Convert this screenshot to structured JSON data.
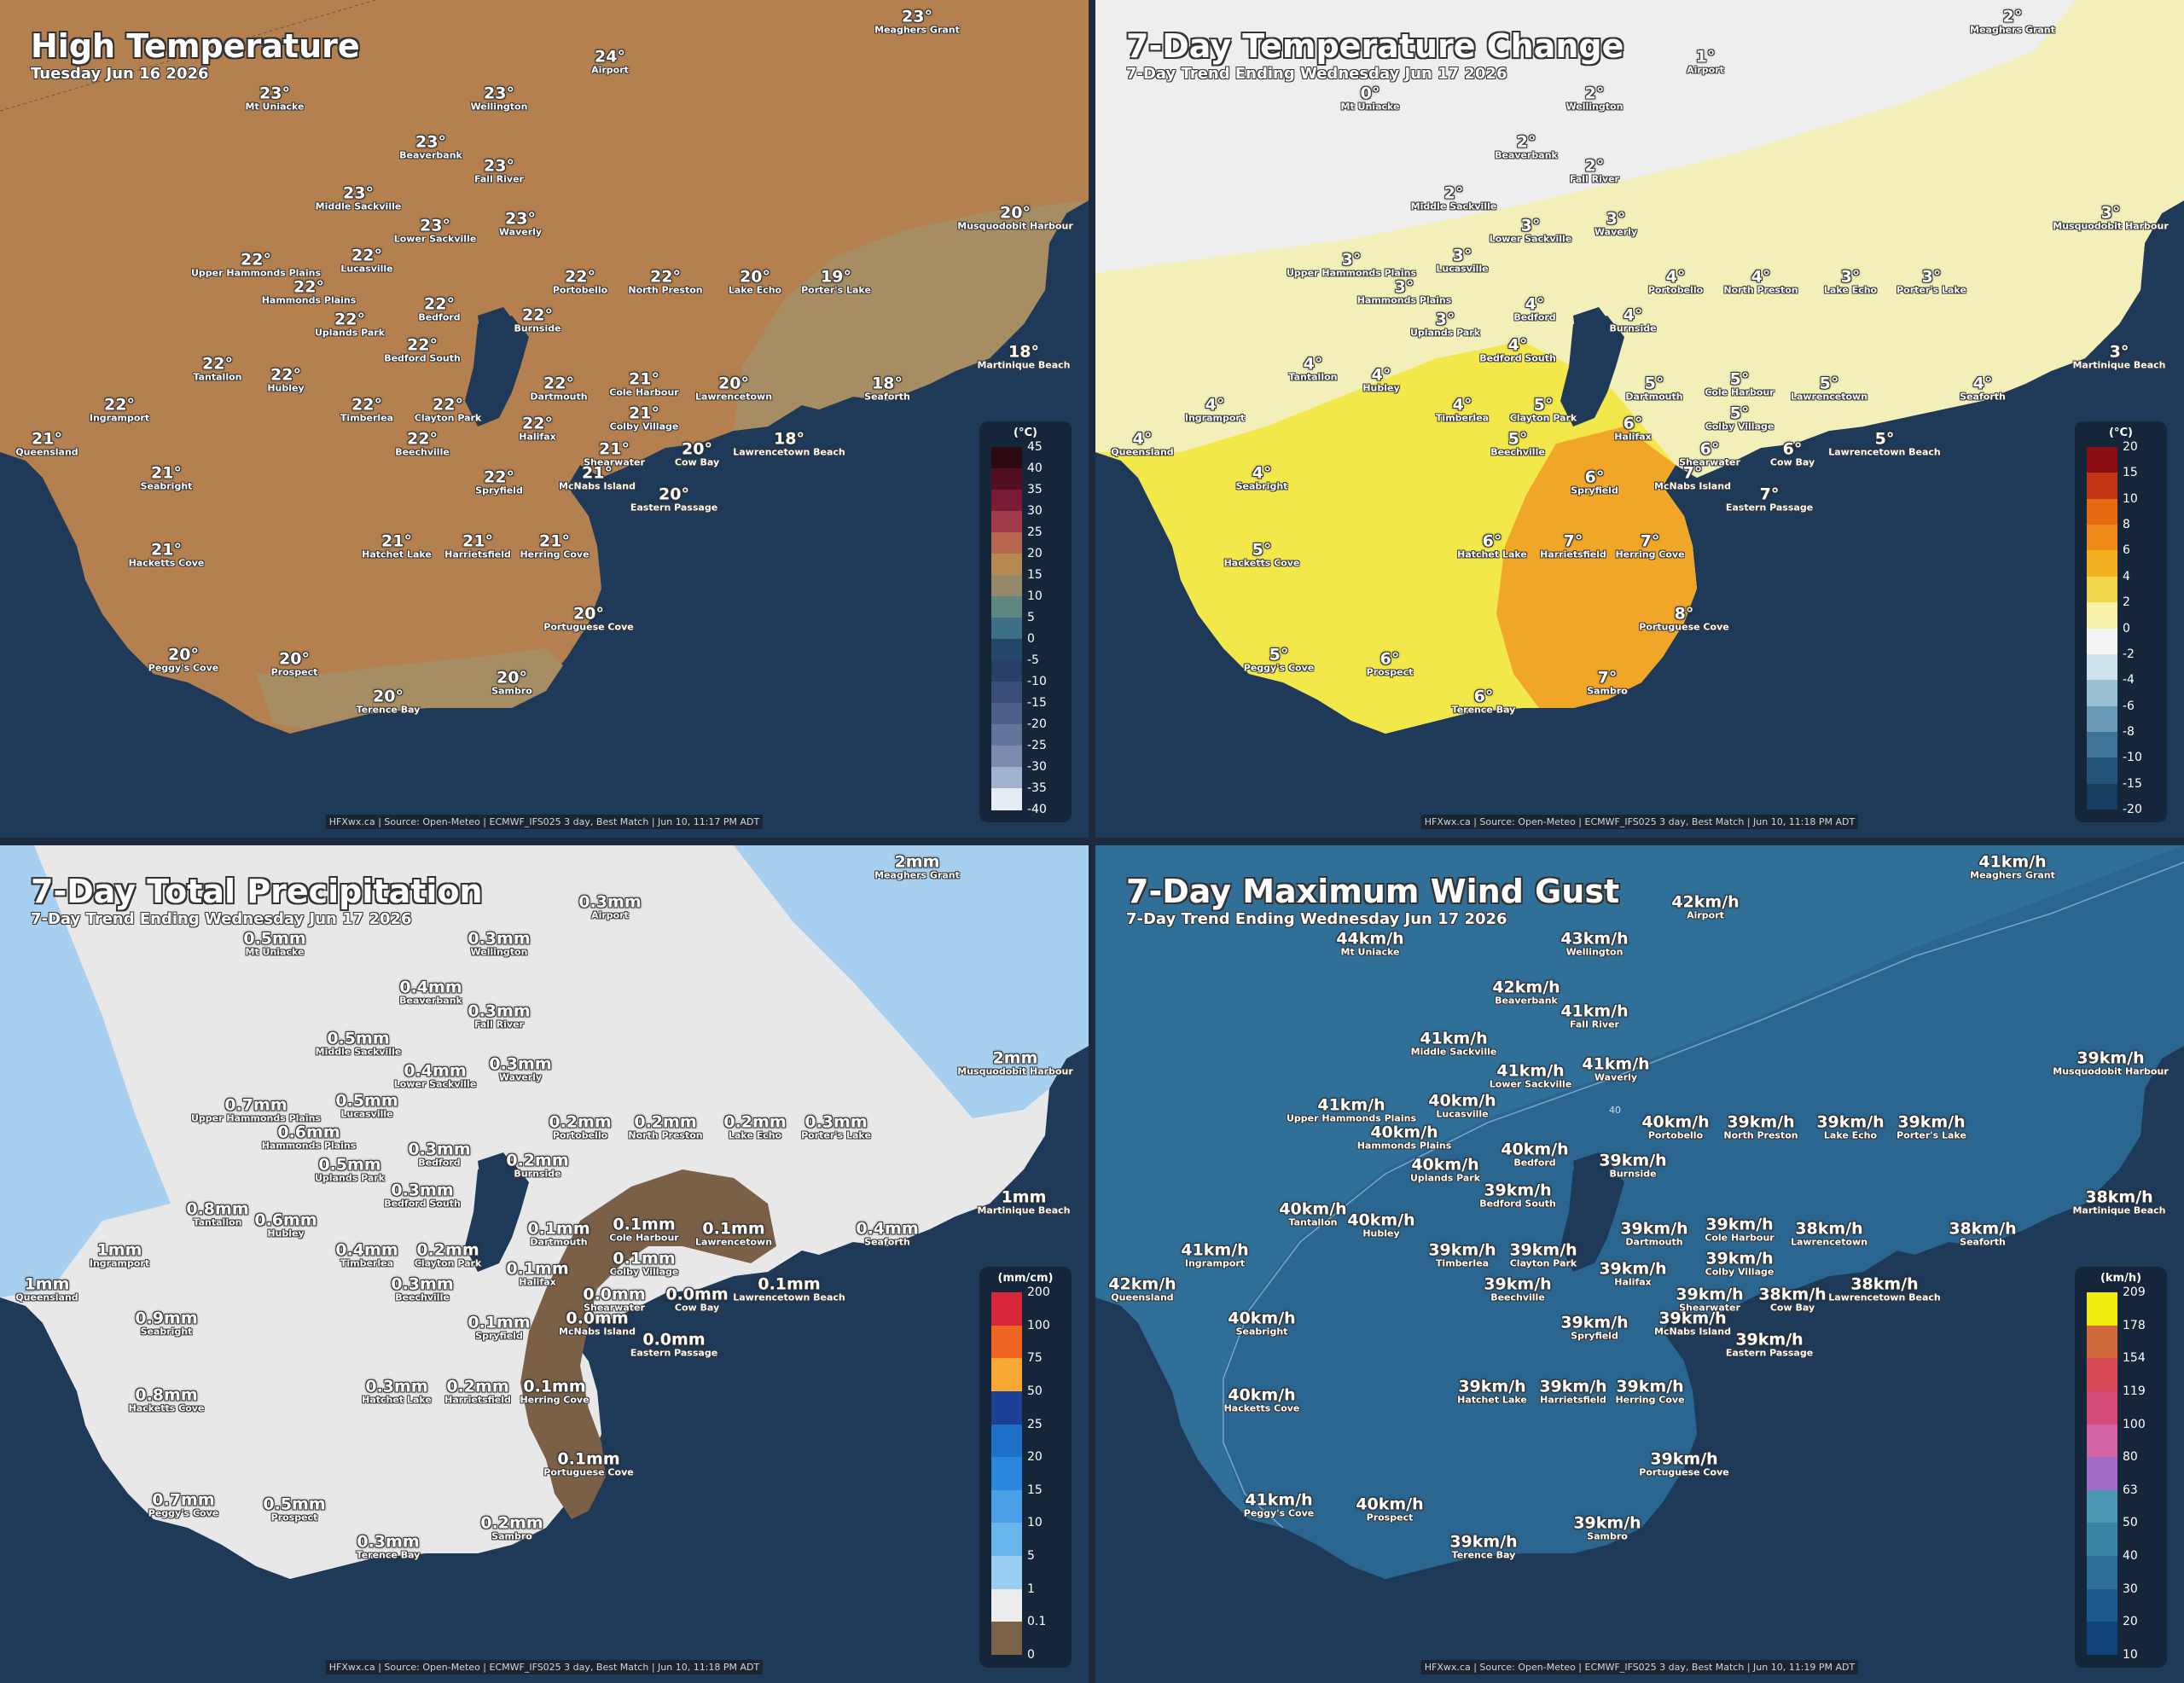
{
  "panels": [
    {
      "id": "temp",
      "title": "High Temperature",
      "subtitle": "Tuesday Jun 16 2026",
      "legend": {
        "unit": "(°C)",
        "ticks": [
          "45",
          "40",
          "35",
          "30",
          "25",
          "20",
          "15",
          "10",
          "5",
          "0",
          "-5",
          "-10",
          "-15",
          "-20",
          "-25",
          "-30",
          "-35",
          "-40"
        ],
        "colors": [
          "#2b0a12",
          "#520f22",
          "#7a1a35",
          "#a03a48",
          "#b8664f",
          "#b5894f",
          "#93886a",
          "#5d8681",
          "#3d6f86",
          "#24486a",
          "#2a3f66",
          "#3a4d76",
          "#4e5f87",
          "#64739a",
          "#7b8aae",
          "#a1b2cf",
          "#e6ecf4"
        ]
      },
      "credit": "HFXwx.ca | Source: Open-Meteo | ECMWF_IFS025 3 day, Best Match | Jun 10, 11:17 PM ADT",
      "places": [
        {
          "name": "Meaghers Grant",
          "value": "23°"
        },
        {
          "name": "Airport",
          "value": "24°"
        },
        {
          "name": "Mt Uniacke",
          "value": "23°"
        },
        {
          "name": "Wellington",
          "value": "23°"
        },
        {
          "name": "Beaverbank",
          "value": "23°"
        },
        {
          "name": "Fall River",
          "value": "23°"
        },
        {
          "name": "Middle Sackville",
          "value": "23°"
        },
        {
          "name": "Lower Sackville",
          "value": "23°"
        },
        {
          "name": "Waverly",
          "value": "23°"
        },
        {
          "name": "Musquodobit Harbour",
          "value": "20°"
        },
        {
          "name": "Upper Hammonds Plains",
          "value": "22°"
        },
        {
          "name": "Lucasville",
          "value": "22°"
        },
        {
          "name": "Hammonds Plains",
          "value": "22°"
        },
        {
          "name": "Portobello",
          "value": "22°"
        },
        {
          "name": "North Preston",
          "value": "22°"
        },
        {
          "name": "Lake Echo",
          "value": "20°"
        },
        {
          "name": "Porter's Lake",
          "value": "19°"
        },
        {
          "name": "Uplands Park",
          "value": "22°"
        },
        {
          "name": "Bedford",
          "value": "22°"
        },
        {
          "name": "Burnside",
          "value": "22°"
        },
        {
          "name": "Bedford South",
          "value": "22°"
        },
        {
          "name": "Martinique Beach",
          "value": "18°"
        },
        {
          "name": "Tantallon",
          "value": "22°"
        },
        {
          "name": "Hubley",
          "value": "22°"
        },
        {
          "name": "Dartmouth",
          "value": "22°"
        },
        {
          "name": "Cole Harbour",
          "value": "21°"
        },
        {
          "name": "Lawrencetown",
          "value": "20°"
        },
        {
          "name": "Seaforth",
          "value": "18°"
        },
        {
          "name": "Ingramport",
          "value": "22°"
        },
        {
          "name": "Timberlea",
          "value": "22°"
        },
        {
          "name": "Clayton Park",
          "value": "22°"
        },
        {
          "name": "Colby Village",
          "value": "21°"
        },
        {
          "name": "Queensland",
          "value": "21°"
        },
        {
          "name": "Halifax",
          "value": "22°"
        },
        {
          "name": "Beechville",
          "value": "22°"
        },
        {
          "name": "Shearwater",
          "value": "21°"
        },
        {
          "name": "Cow Bay",
          "value": "20°"
        },
        {
          "name": "Lawrencetown Beach",
          "value": "18°"
        },
        {
          "name": "Seabright",
          "value": "21°"
        },
        {
          "name": "Spryfield",
          "value": "22°"
        },
        {
          "name": "McNabs Island",
          "value": "21°"
        },
        {
          "name": "Eastern Passage",
          "value": "20°"
        },
        {
          "name": "Hatchet Lake",
          "value": "21°"
        },
        {
          "name": "Harrietsfield",
          "value": "21°"
        },
        {
          "name": "Herring Cove",
          "value": "21°"
        },
        {
          "name": "Hacketts Cove",
          "value": "21°"
        },
        {
          "name": "Portuguese Cove",
          "value": "20°"
        },
        {
          "name": "Peggy's Cove",
          "value": "20°"
        },
        {
          "name": "Prospect",
          "value": "20°"
        },
        {
          "name": "Sambro",
          "value": "20°"
        },
        {
          "name": "Terence Bay",
          "value": "20°"
        }
      ]
    },
    {
      "id": "change",
      "title": "7-Day Temperature Change",
      "subtitle": "7-Day Trend Ending Wednesday Jun 17 2026",
      "legend": {
        "unit": "(°C)",
        "ticks": [
          "20",
          "15",
          "10",
          "8",
          "6",
          "4",
          "2",
          "0",
          "-2",
          "-4",
          "-6",
          "-8",
          "-10",
          "-15",
          "-20"
        ],
        "colors": [
          "#8a0f14",
          "#c43414",
          "#e66a10",
          "#f08a18",
          "#f4b020",
          "#f2d64a",
          "#f6f0a8",
          "#f5f5f5",
          "#cfe3ec",
          "#9ac0d4",
          "#6a9ab6",
          "#3f7398",
          "#22547a",
          "#163e60"
        ]
      },
      "credit": "HFXwx.ca | Source: Open-Meteo | ECMWF_IFS025 3 day, Best Match | Jun 10, 11:18 PM ADT",
      "places": [
        {
          "name": "Meaghers Grant",
          "value": "2°"
        },
        {
          "name": "Airport",
          "value": "1°"
        },
        {
          "name": "Mt Uniacke",
          "value": "0°"
        },
        {
          "name": "Wellington",
          "value": "2°"
        },
        {
          "name": "Beaverbank",
          "value": "2°"
        },
        {
          "name": "Fall River",
          "value": "2°"
        },
        {
          "name": "Middle Sackville",
          "value": "2°"
        },
        {
          "name": "Lower Sackville",
          "value": "3°"
        },
        {
          "name": "Waverly",
          "value": "3°"
        },
        {
          "name": "Musquodobit Harbour",
          "value": "3°"
        },
        {
          "name": "Upper Hammonds Plains",
          "value": "3°"
        },
        {
          "name": "Lucasville",
          "value": "3°"
        },
        {
          "name": "Hammonds Plains",
          "value": "3°"
        },
        {
          "name": "Portobello",
          "value": "4°"
        },
        {
          "name": "North Preston",
          "value": "4°"
        },
        {
          "name": "Lake Echo",
          "value": "3°"
        },
        {
          "name": "Porter's Lake",
          "value": "3°"
        },
        {
          "name": "Uplands Park",
          "value": "3°"
        },
        {
          "name": "Bedford",
          "value": "4°"
        },
        {
          "name": "Burnside",
          "value": "4°"
        },
        {
          "name": "Bedford South",
          "value": "4°"
        },
        {
          "name": "Martinique Beach",
          "value": "3°"
        },
        {
          "name": "Tantallon",
          "value": "4°"
        },
        {
          "name": "Hubley",
          "value": "4°"
        },
        {
          "name": "Dartmouth",
          "value": "5°"
        },
        {
          "name": "Cole Harbour",
          "value": "5°"
        },
        {
          "name": "Lawrencetown",
          "value": "5°"
        },
        {
          "name": "Seaforth",
          "value": "4°"
        },
        {
          "name": "Ingramport",
          "value": "4°"
        },
        {
          "name": "Timberlea",
          "value": "4°"
        },
        {
          "name": "Clayton Park",
          "value": "5°"
        },
        {
          "name": "Colby Village",
          "value": "5°"
        },
        {
          "name": "Queensland",
          "value": "4°"
        },
        {
          "name": "Halifax",
          "value": "6°"
        },
        {
          "name": "Beechville",
          "value": "5°"
        },
        {
          "name": "Shearwater",
          "value": "6°"
        },
        {
          "name": "Cow Bay",
          "value": "6°"
        },
        {
          "name": "Lawrencetown Beach",
          "value": "5°"
        },
        {
          "name": "Seabright",
          "value": "4°"
        },
        {
          "name": "Spryfield",
          "value": "6°"
        },
        {
          "name": "McNabs Island",
          "value": "7°"
        },
        {
          "name": "Eastern Passage",
          "value": "7°"
        },
        {
          "name": "Hatchet Lake",
          "value": "6°"
        },
        {
          "name": "Harrietsfield",
          "value": "7°"
        },
        {
          "name": "Herring Cove",
          "value": "7°"
        },
        {
          "name": "Hacketts Cove",
          "value": "5°"
        },
        {
          "name": "Portuguese Cove",
          "value": "8°"
        },
        {
          "name": "Peggy's Cove",
          "value": "5°"
        },
        {
          "name": "Prospect",
          "value": "6°"
        },
        {
          "name": "Sambro",
          "value": "7°"
        },
        {
          "name": "Terence Bay",
          "value": "6°"
        }
      ]
    },
    {
      "id": "precip",
      "title": "7-Day Total Precipitation",
      "subtitle": "7-Day Trend Ending Wednesday Jun 17 2026",
      "legend": {
        "unit": "(mm/cm)",
        "ticks": [
          "200",
          "100",
          "75",
          "50",
          "25",
          "20",
          "15",
          "10",
          "5",
          "1",
          "0.1",
          "0"
        ],
        "colors": [
          "#d8263a",
          "#ee6420",
          "#f7a832",
          "#1b3f94",
          "#1f70c8",
          "#2b86de",
          "#4a9fe6",
          "#6cb6ee",
          "#9acdf2",
          "#ececec",
          "#7b6248"
        ]
      },
      "credit": "HFXwx.ca | Source: Open-Meteo | ECMWF_IFS025 3 day, Best Match | Jun 10, 11:18 PM ADT",
      "places": [
        {
          "name": "Meaghers Grant",
          "value": "2mm"
        },
        {
          "name": "Airport",
          "value": "0.3mm"
        },
        {
          "name": "Mt Uniacke",
          "value": "0.5mm"
        },
        {
          "name": "Wellington",
          "value": "0.3mm"
        },
        {
          "name": "Beaverbank",
          "value": "0.4mm"
        },
        {
          "name": "Fall River",
          "value": "0.3mm"
        },
        {
          "name": "Middle Sackville",
          "value": "0.5mm"
        },
        {
          "name": "Lower Sackville",
          "value": "0.4mm"
        },
        {
          "name": "Waverly",
          "value": "0.3mm"
        },
        {
          "name": "Musquodobit Harbour",
          "value": "2mm"
        },
        {
          "name": "Upper Hammonds Plains",
          "value": "0.7mm"
        },
        {
          "name": "Lucasville",
          "value": "0.5mm"
        },
        {
          "name": "Hammonds Plains",
          "value": "0.6mm"
        },
        {
          "name": "Portobello",
          "value": "0.2mm"
        },
        {
          "name": "North Preston",
          "value": "0.2mm"
        },
        {
          "name": "Lake Echo",
          "value": "0.2mm"
        },
        {
          "name": "Porter's Lake",
          "value": "0.3mm"
        },
        {
          "name": "Uplands Park",
          "value": "0.5mm"
        },
        {
          "name": "Bedford",
          "value": "0.3mm"
        },
        {
          "name": "Burnside",
          "value": "0.2mm"
        },
        {
          "name": "Bedford South",
          "value": "0.3mm"
        },
        {
          "name": "Martinique Beach",
          "value": "1mm"
        },
        {
          "name": "Tantallon",
          "value": "0.8mm"
        },
        {
          "name": "Hubley",
          "value": "0.6mm"
        },
        {
          "name": "Dartmouth",
          "value": "0.1mm"
        },
        {
          "name": "Cole Harbour",
          "value": "0.1mm"
        },
        {
          "name": "Lawrencetown",
          "value": "0.1mm"
        },
        {
          "name": "Seaforth",
          "value": "0.4mm"
        },
        {
          "name": "Ingramport",
          "value": "1mm"
        },
        {
          "name": "Timberlea",
          "value": "0.4mm"
        },
        {
          "name": "Clayton Park",
          "value": "0.2mm"
        },
        {
          "name": "Colby Village",
          "value": "0.1mm"
        },
        {
          "name": "Queensland",
          "value": "1mm"
        },
        {
          "name": "Halifax",
          "value": "0.1mm"
        },
        {
          "name": "Beechville",
          "value": "0.3mm"
        },
        {
          "name": "Shearwater",
          "value": "0.0mm"
        },
        {
          "name": "Cow Bay",
          "value": "0.0mm"
        },
        {
          "name": "Lawrencetown Beach",
          "value": "0.1mm"
        },
        {
          "name": "Seabright",
          "value": "0.9mm"
        },
        {
          "name": "Spryfield",
          "value": "0.1mm"
        },
        {
          "name": "McNabs Island",
          "value": "0.0mm"
        },
        {
          "name": "Eastern Passage",
          "value": "0.0mm"
        },
        {
          "name": "Hatchet Lake",
          "value": "0.3mm"
        },
        {
          "name": "Harrietsfield",
          "value": "0.2mm"
        },
        {
          "name": "Herring Cove",
          "value": "0.1mm"
        },
        {
          "name": "Hacketts Cove",
          "value": "0.8mm"
        },
        {
          "name": "Portuguese Cove",
          "value": "0.1mm"
        },
        {
          "name": "Peggy's Cove",
          "value": "0.7mm"
        },
        {
          "name": "Prospect",
          "value": "0.5mm"
        },
        {
          "name": "Sambro",
          "value": "0.2mm"
        },
        {
          "name": "Terence Bay",
          "value": "0.3mm"
        }
      ]
    },
    {
      "id": "wind",
      "title": "7-Day Maximum Wind Gust",
      "subtitle": "7-Day Trend Ending Wednesday Jun 17 2026",
      "legend": {
        "unit": "(km/h)",
        "ticks": [
          "209",
          "178",
          "154",
          "119",
          "100",
          "80",
          "63",
          "50",
          "40",
          "30",
          "20",
          "10"
        ],
        "colors": [
          "#f4ee10",
          "#d06a3c",
          "#d84a58",
          "#d64a7a",
          "#d064a4",
          "#a46ac8",
          "#4c98b4",
          "#3a84a6",
          "#2e6e98",
          "#1e5a8c",
          "#0f4278"
        ]
      },
      "credit": "HFXwx.ca | Source: Open-Meteo | ECMWF_IFS025 3 day, Best Match | Jun 10, 11:19 PM ADT",
      "contour_labels": [
        "40"
      ],
      "places": [
        {
          "name": "Meaghers Grant",
          "value": "41km/h"
        },
        {
          "name": "Airport",
          "value": "42km/h"
        },
        {
          "name": "Mt Uniacke",
          "value": "44km/h"
        },
        {
          "name": "Wellington",
          "value": "43km/h"
        },
        {
          "name": "Beaverbank",
          "value": "42km/h"
        },
        {
          "name": "Fall River",
          "value": "41km/h"
        },
        {
          "name": "Middle Sackville",
          "value": "41km/h"
        },
        {
          "name": "Lower Sackville",
          "value": "41km/h"
        },
        {
          "name": "Waverly",
          "value": "41km/h"
        },
        {
          "name": "Musquodobit Harbour",
          "value": "39km/h"
        },
        {
          "name": "Upper Hammonds Plains",
          "value": "41km/h"
        },
        {
          "name": "Lucasville",
          "value": "40km/h"
        },
        {
          "name": "Hammonds Plains",
          "value": "40km/h"
        },
        {
          "name": "Portobello",
          "value": "40km/h"
        },
        {
          "name": "North Preston",
          "value": "39km/h"
        },
        {
          "name": "Lake Echo",
          "value": "39km/h"
        },
        {
          "name": "Porter's Lake",
          "value": "39km/h"
        },
        {
          "name": "Uplands Park",
          "value": "40km/h"
        },
        {
          "name": "Bedford",
          "value": "40km/h"
        },
        {
          "name": "Burnside",
          "value": "39km/h"
        },
        {
          "name": "Bedford South",
          "value": "39km/h"
        },
        {
          "name": "Martinique Beach",
          "value": "38km/h"
        },
        {
          "name": "Tantallon",
          "value": "40km/h"
        },
        {
          "name": "Hubley",
          "value": "40km/h"
        },
        {
          "name": "Dartmouth",
          "value": "39km/h"
        },
        {
          "name": "Cole Harbour",
          "value": "39km/h"
        },
        {
          "name": "Lawrencetown",
          "value": "38km/h"
        },
        {
          "name": "Seaforth",
          "value": "38km/h"
        },
        {
          "name": "Ingramport",
          "value": "41km/h"
        },
        {
          "name": "Timberlea",
          "value": "39km/h"
        },
        {
          "name": "Clayton Park",
          "value": "39km/h"
        },
        {
          "name": "Colby Village",
          "value": "39km/h"
        },
        {
          "name": "Queensland",
          "value": "42km/h"
        },
        {
          "name": "Halifax",
          "value": "39km/h"
        },
        {
          "name": "Beechville",
          "value": "39km/h"
        },
        {
          "name": "Shearwater",
          "value": "39km/h"
        },
        {
          "name": "Cow Bay",
          "value": "38km/h"
        },
        {
          "name": "Lawrencetown Beach",
          "value": "38km/h"
        },
        {
          "name": "Seabright",
          "value": "40km/h"
        },
        {
          "name": "Spryfield",
          "value": "39km/h"
        },
        {
          "name": "McNabs Island",
          "value": "39km/h"
        },
        {
          "name": "Eastern Passage",
          "value": "39km/h"
        },
        {
          "name": "Hatchet Lake",
          "value": "39km/h"
        },
        {
          "name": "Harrietsfield",
          "value": "39km/h"
        },
        {
          "name": "Herring Cove",
          "value": "39km/h"
        },
        {
          "name": "Hacketts Cove",
          "value": "40km/h"
        },
        {
          "name": "Portuguese Cove",
          "value": "39km/h"
        },
        {
          "name": "Peggy's Cove",
          "value": "41km/h"
        },
        {
          "name": "Prospect",
          "value": "40km/h"
        },
        {
          "name": "Sambro",
          "value": "39km/h"
        },
        {
          "name": "Terence Bay",
          "value": "39km/h"
        }
      ]
    }
  ]
}
